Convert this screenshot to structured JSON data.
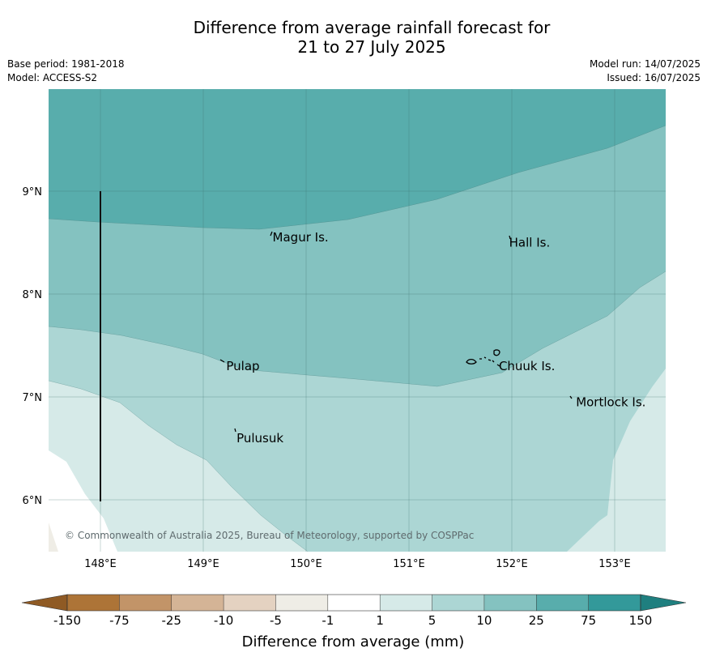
{
  "title": {
    "line1": "Difference from average rainfall forecast for",
    "line2": "21 to 27 July 2025"
  },
  "meta": {
    "base_period": "Base period: 1981-2018",
    "model": "Model: ACCESS-S2",
    "model_run": "Model run: 14/07/2025",
    "issued": "Issued: 16/07/2025"
  },
  "axes": {
    "lat_labels": [
      "9°N",
      "8°N",
      "7°N",
      "6°N"
    ],
    "lon_labels": [
      "148°E",
      "149°E",
      "150°E",
      "151°E",
      "152°E",
      "153°E"
    ]
  },
  "places": [
    {
      "name": "Magur Is.",
      "lon": 149.65,
      "lat": 8.55
    },
    {
      "name": "Hall Is.",
      "lon": 151.95,
      "lat": 8.5
    },
    {
      "name": "Pulap",
      "lon": 149.2,
      "lat": 7.3
    },
    {
      "name": "Chuuk Is.",
      "lon": 151.85,
      "lat": 7.3
    },
    {
      "name": "Mortlock Is.",
      "lon": 152.6,
      "lat": 6.95
    },
    {
      "name": "Pulusuk",
      "lon": 149.3,
      "lat": 6.6
    }
  ],
  "copyright": "© Commonwealth of Australia 2025, Bureau of Meteorology, supported by COSPPac",
  "colorbar": {
    "title": "Difference from average (mm)",
    "ticks": [
      "-150",
      "-75",
      "-25",
      "-10",
      "-5",
      "-1",
      "1",
      "5",
      "10",
      "25",
      "75",
      "150"
    ],
    "colors": [
      "#ad7437",
      "#c29468",
      "#d4b496",
      "#e4d2c1",
      "#efede6",
      "#ffffff",
      "#d6eae8",
      "#acd6d4",
      "#84c2c0",
      "#58adac",
      "#33999a"
    ],
    "under_color": "#8f5a24",
    "over_color": "#1f7f7f"
  }
}
